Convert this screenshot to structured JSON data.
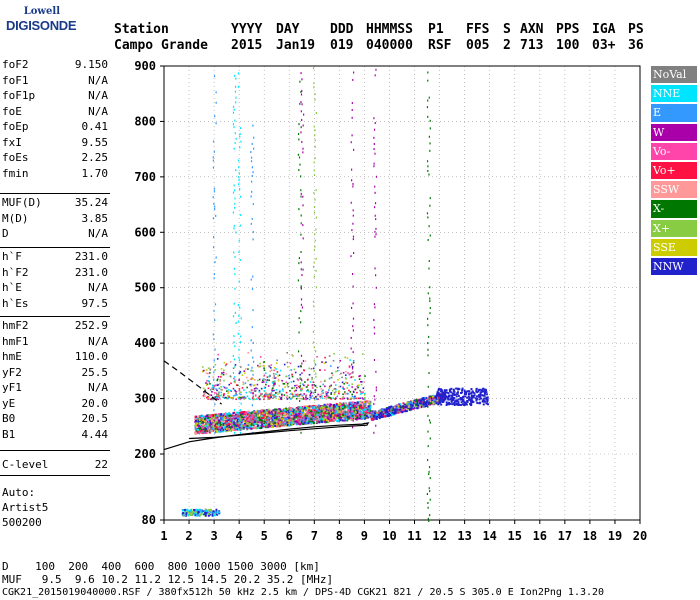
{
  "logo": {
    "line1": "Lowell",
    "line2": "DIGISONDE"
  },
  "header": {
    "station_label": "Station",
    "station": "Campo Grande",
    "yyyy_label": "YYYY",
    "yyyy": "2015",
    "day_label": "DAY",
    "day": "Jan19",
    "ddd_label": "DDD",
    "ddd": "019",
    "hhmmss_label": "HHMMSS",
    "hhmmss": "040000",
    "p1_label": "P1",
    "p1": "RSF",
    "ffs_label": "FFS",
    "ffs": "005",
    "s_label": "S",
    "s": "2",
    "axn_label": "AXN",
    "axn": "713",
    "pps_label": "PPS",
    "pps": "100",
    "iga_label": "IGA",
    "iga": "03+",
    "ps_label": "PS",
    "ps": "36"
  },
  "params": {
    "g1": [
      {
        "k": "foF2",
        "v": "9.150"
      },
      {
        "k": "foF1",
        "v": "N/A"
      },
      {
        "k": "foF1p",
        "v": "N/A"
      },
      {
        "k": "foE",
        "v": "N/A"
      },
      {
        "k": "foEp",
        "v": "0.41"
      },
      {
        "k": "fxI",
        "v": "9.55"
      },
      {
        "k": "foEs",
        "v": "2.25"
      },
      {
        "k": "fmin",
        "v": "1.70"
      }
    ],
    "g2": [
      {
        "k": "MUF(D)",
        "v": "35.24"
      },
      {
        "k": "M(D)",
        "v": "3.85"
      },
      {
        "k": "D",
        "v": "N/A"
      }
    ],
    "g3": [
      {
        "k": "h`F",
        "v": "231.0"
      },
      {
        "k": "h`F2",
        "v": "231.0"
      },
      {
        "k": "h`E",
        "v": "N/A"
      },
      {
        "k": "h`Es",
        "v": "97.5"
      }
    ],
    "g4": [
      {
        "k": "hmF2",
        "v": "252.9"
      },
      {
        "k": "hmF1",
        "v": "N/A"
      },
      {
        "k": "hmE",
        "v": "110.0"
      },
      {
        "k": "yF2",
        "v": "25.5"
      },
      {
        "k": "yF1",
        "v": "N/A"
      },
      {
        "k": "yE",
        "v": "20.0"
      },
      {
        "k": "B0",
        "v": "20.5"
      },
      {
        "k": "B1",
        "v": "4.44"
      }
    ],
    "g5": [
      {
        "k": "C-level",
        "v": "22"
      }
    ]
  },
  "auto": {
    "line1": "Auto:",
    "line2": "Artist5",
    "line3": "500200"
  },
  "legend": [
    {
      "label": "NoVal",
      "color": "#808080"
    },
    {
      "label": "NNE",
      "color": "#00e5ff"
    },
    {
      "label": "E",
      "color": "#3399ff"
    },
    {
      "label": "W",
      "color": "#aa00aa"
    },
    {
      "label": "Vo-",
      "color": "#ff44aa"
    },
    {
      "label": "Vo+",
      "color": "#ff1144"
    },
    {
      "label": "SSW",
      "color": "#ff9999"
    },
    {
      "label": "X-",
      "color": "#007700"
    },
    {
      "label": "X+",
      "color": "#88cc44"
    },
    {
      "label": "SSE",
      "color": "#cccc00"
    },
    {
      "label": "NNW",
      "color": "#2222cc"
    }
  ],
  "bottom": {
    "d_row": "D    100  200  400  600  800 1000 1500 3000 [km]",
    "muf_row": "MUF   9.5  9.6 10.2 11.2 12.5 14.5 20.2 35.2 [MHz]",
    "file_row": "CGK21_2015019040000.RSF / 380fx512h 50 kHz 2.5 km / DPS-4D CGK21 821 / 20.5 S 305.0 E Ion2Png 1.3.20"
  },
  "chart_data": {
    "type": "scatter",
    "xlabel": "",
    "ylabel": "",
    "xlim": [
      1,
      20
    ],
    "ylim": [
      80,
      900
    ],
    "x_ticks": [
      "1",
      "2",
      "3",
      "4",
      "5",
      "6",
      "7",
      "8",
      "9",
      "10",
      "11",
      "12",
      "13",
      "14",
      "15",
      "16",
      "17",
      "18",
      "19",
      "20"
    ],
    "y_ticks": [
      "80",
      "200",
      "300",
      "400",
      "500",
      "600",
      "700",
      "800",
      "900"
    ],
    "grid": true,
    "legend_position": "right",
    "f_trace": {
      "x_start": 2.2,
      "x_end": 9.2,
      "h_start": 242,
      "h_end": 270,
      "spread": 32
    },
    "f_trace_ext": {
      "x_start": 9.2,
      "x_end": 12.2,
      "h_start": 270,
      "h_end": 305
    },
    "nnw_cluster": {
      "x_start": 11.8,
      "x_end": 13.9,
      "h_center": 305
    },
    "es_cluster": {
      "x_start": 1.7,
      "x_end": 3.2,
      "h_center": 95
    },
    "profile_solid": [
      [
        1.0,
        208
      ],
      [
        2.0,
        222
      ],
      [
        3.0,
        229
      ],
      [
        4.0,
        235
      ],
      [
        5.0,
        240
      ],
      [
        6.0,
        245
      ],
      [
        7.0,
        249
      ],
      [
        8.0,
        252
      ],
      [
        8.9,
        254
      ],
      [
        9.15,
        256
      ],
      [
        9.1,
        252
      ],
      [
        8.0,
        249
      ],
      [
        6.0,
        242
      ],
      [
        4.0,
        234
      ],
      [
        3.0,
        230
      ],
      [
        2.0,
        228
      ]
    ],
    "profile_dashed": [
      [
        1.0,
        368
      ],
      [
        1.5,
        352
      ],
      [
        2.0,
        335
      ],
      [
        2.5,
        318
      ],
      [
        3.0,
        300
      ],
      [
        3.3,
        290
      ]
    ],
    "vertical_streaks": [
      {
        "x": 3.0,
        "h_low": 240,
        "h_high": 900,
        "series": "E"
      },
      {
        "x": 3.8,
        "h_low": 240,
        "h_high": 900,
        "series": "NNE"
      },
      {
        "x": 4.0,
        "h_low": 240,
        "h_high": 900,
        "series": "NNE"
      },
      {
        "x": 4.5,
        "h_low": 240,
        "h_high": 800,
        "series": "E"
      },
      {
        "x": 6.4,
        "h_low": 240,
        "h_high": 900,
        "series": "X-"
      },
      {
        "x": 6.5,
        "h_low": 240,
        "h_high": 900,
        "series": "W"
      },
      {
        "x": 7.0,
        "h_low": 240,
        "h_high": 900,
        "series": "X+"
      },
      {
        "x": 8.5,
        "h_low": 240,
        "h_high": 900,
        "series": "W"
      },
      {
        "x": 9.4,
        "h_low": 240,
        "h_high": 900,
        "series": "W"
      },
      {
        "x": 11.55,
        "h_low": 80,
        "h_high": 900,
        "series": "X-"
      }
    ]
  }
}
